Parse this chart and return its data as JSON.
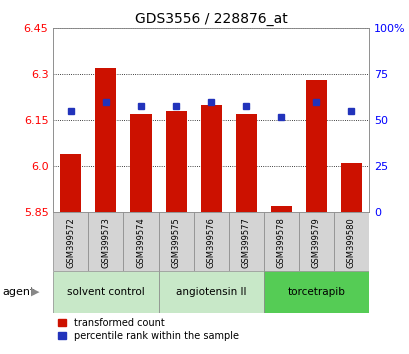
{
  "title": "GDS3556 / 228876_at",
  "samples": [
    "GSM399572",
    "GSM399573",
    "GSM399574",
    "GSM399575",
    "GSM399576",
    "GSM399577",
    "GSM399578",
    "GSM399579",
    "GSM399580"
  ],
  "red_values": [
    6.04,
    6.32,
    6.17,
    6.18,
    6.2,
    6.17,
    5.87,
    6.28,
    6.01
  ],
  "blue_pct": [
    55,
    60,
    58,
    58,
    60,
    58,
    52,
    60,
    55
  ],
  "y_min": 5.85,
  "y_max": 6.45,
  "y_ticks_left": [
    5.85,
    6.0,
    6.15,
    6.3,
    6.45
  ],
  "y_ticks_right": [
    0,
    25,
    50,
    75,
    100
  ],
  "groups": [
    {
      "label": "solvent control",
      "start": 0,
      "end": 2,
      "color": "#c8e8c8"
    },
    {
      "label": "angiotensin II",
      "start": 3,
      "end": 5,
      "color": "#c8e8c8"
    },
    {
      "label": "torcetrapib",
      "start": 6,
      "end": 8,
      "color": "#55cc55"
    }
  ],
  "bar_color": "#cc1100",
  "blue_color": "#2233bb",
  "plot_bg": "#ffffff",
  "sample_box_color": "#d4d4d4",
  "agent_label": "agent",
  "legend_transformed": "transformed count",
  "legend_percentile": "percentile rank within the sample",
  "title_fontsize": 10,
  "tick_fontsize": 8,
  "sample_fontsize": 6,
  "group_fontsize": 7.5,
  "legend_fontsize": 7
}
